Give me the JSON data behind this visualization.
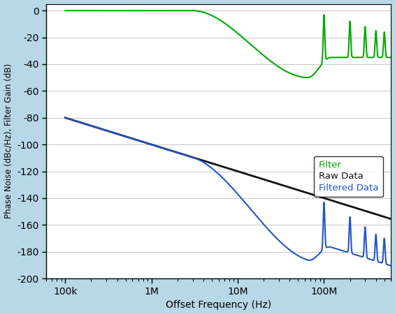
{
  "xlabel": "Offset Frequency (Hz)",
  "ylabel": "Phase Noise (dBc/Hz), Filter Gain (dB)",
  "yticks": [
    0,
    -20,
    -40,
    -60,
    -80,
    -100,
    -120,
    -140,
    -160,
    -180,
    -200
  ],
  "xtick_labels": [
    "100k",
    "1M",
    "10M",
    "100M"
  ],
  "xtick_vals": [
    100000.0,
    1000000.0,
    10000000.0,
    100000000.0
  ],
  "background_color": "#b8d8e8",
  "plot_bg_color": "#ffffff",
  "green_color": "#00aa00",
  "black_color": "#111111",
  "blue_color": "#2255cc",
  "legend_items": [
    "Filter",
    "Raw Data",
    "Filtered Data"
  ],
  "legend_colors": [
    "#00aa00",
    "#111111",
    "#2255cc"
  ]
}
